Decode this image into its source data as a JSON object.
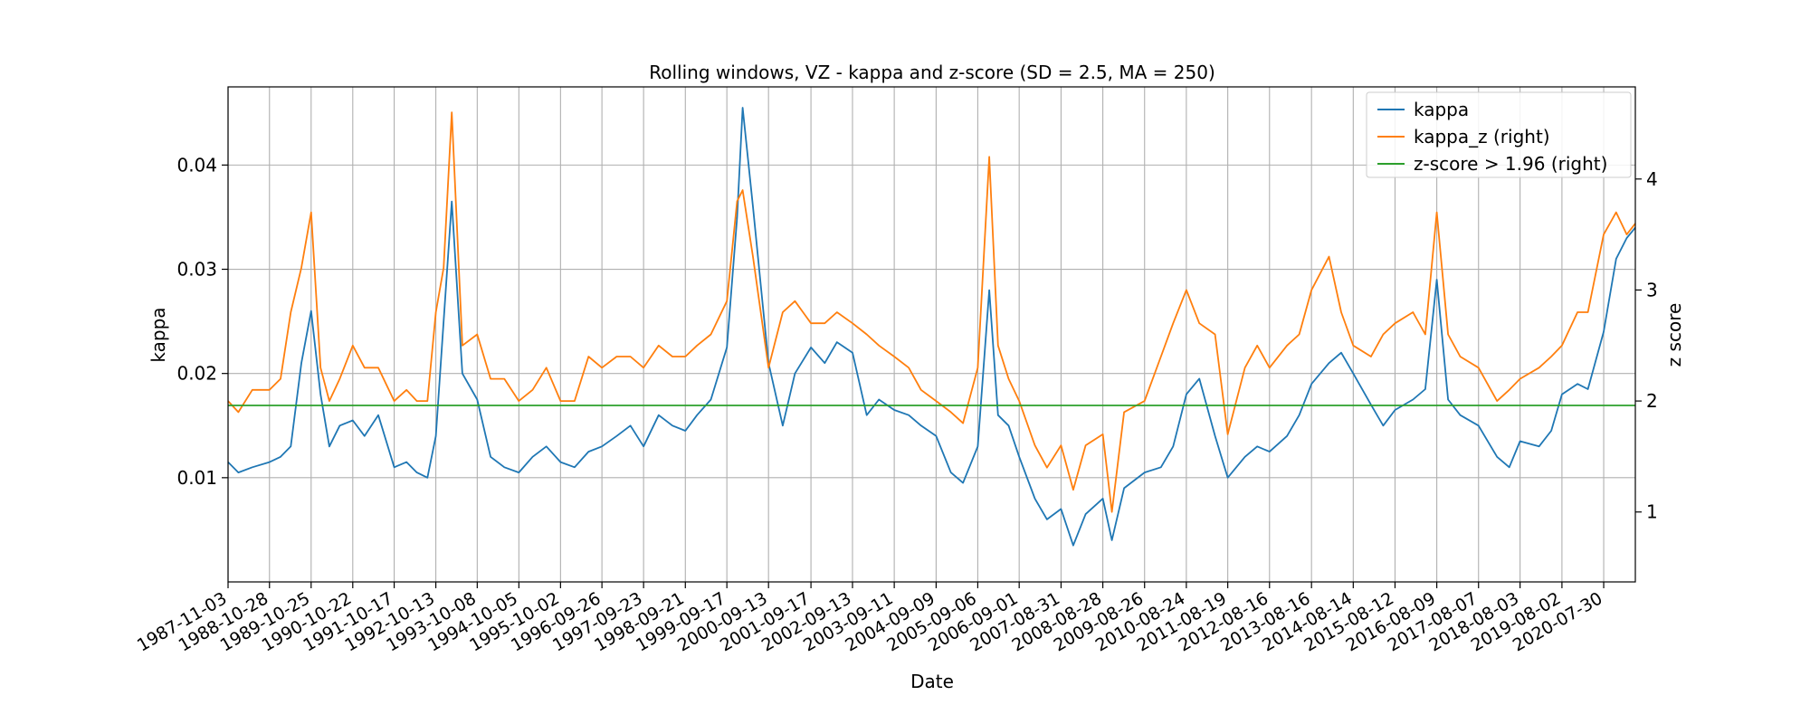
{
  "chart_data": {
    "type": "line",
    "title": "Rolling windows, VZ - kappa and z-score (SD = 2.5, MA = 250)",
    "xlabel": "Date",
    "ylabel": "kappa",
    "ylabel_right": "z score",
    "xlim": [
      "1987-11-03",
      "2021-05-01"
    ],
    "ylim": [
      0.0,
      0.0475
    ],
    "ylim_right": [
      0.37,
      4.83
    ],
    "x_tick_labels": [
      "1987-11-03",
      "1988-10-28",
      "1989-10-25",
      "1990-10-22",
      "1991-10-17",
      "1992-10-13",
      "1993-10-08",
      "1994-10-05",
      "1995-10-02",
      "1996-09-26",
      "1997-09-23",
      "1998-09-21",
      "1999-09-17",
      "2000-09-13",
      "2001-09-17",
      "2002-09-13",
      "2003-09-11",
      "2004-09-09",
      "2005-09-06",
      "2006-09-01",
      "2007-08-31",
      "2008-08-28",
      "2009-08-26",
      "2010-08-24",
      "2011-08-19",
      "2012-08-16",
      "2013-08-16",
      "2014-08-14",
      "2015-08-12",
      "2016-08-09",
      "2017-08-07",
      "2018-08-03",
      "2019-08-02",
      "2020-07-30"
    ],
    "y_tick_labels": [
      "0.01",
      "0.02",
      "0.03",
      "0.04"
    ],
    "y_tick_values": [
      0.01,
      0.02,
      0.03,
      0.04
    ],
    "y_tick_labels_right": [
      "1",
      "2",
      "3",
      "4"
    ],
    "y_tick_values_right": [
      1,
      2,
      3,
      4
    ],
    "grid": true,
    "legend_position": "top-right",
    "series": [
      {
        "name": "kappa",
        "axis": "left",
        "color": "#1f77b4",
        "x": [
          "1987-11-03",
          "1988-02-01",
          "1988-06-01",
          "1988-10-28",
          "1989-02-01",
          "1989-05-01",
          "1989-08-01",
          "1989-10-25",
          "1990-01-15",
          "1990-04-01",
          "1990-07-01",
          "1990-10-22",
          "1991-02-01",
          "1991-06-01",
          "1991-10-17",
          "1992-02-01",
          "1992-05-01",
          "1992-08-01",
          "1992-10-13",
          "1992-12-20",
          "1993-03-01",
          "1993-06-01",
          "1993-10-08",
          "1994-02-01",
          "1994-06-01",
          "1994-10-05",
          "1995-02-01",
          "1995-06-01",
          "1995-10-02",
          "1996-02-01",
          "1996-06-01",
          "1996-09-26",
          "1997-02-01",
          "1997-06-01",
          "1997-09-23",
          "1998-02-01",
          "1998-06-01",
          "1998-09-21",
          "1999-01-01",
          "1999-05-01",
          "1999-09-17",
          "1999-12-15",
          "2000-02-01",
          "2000-05-01",
          "2000-09-13",
          "2001-01-15",
          "2001-05-01",
          "2001-09-17",
          "2002-01-15",
          "2002-05-01",
          "2002-09-13",
          "2003-01-15",
          "2003-05-01",
          "2003-09-11",
          "2004-01-15",
          "2004-05-01",
          "2004-09-09",
          "2005-01-15",
          "2005-05-01",
          "2005-09-06",
          "2005-12-15",
          "2006-03-01",
          "2006-06-01",
          "2006-09-01",
          "2007-01-15",
          "2007-05-01",
          "2007-08-31",
          "2007-12-15",
          "2008-04-01",
          "2008-08-28",
          "2008-11-15",
          "2009-03-01",
          "2009-08-26",
          "2010-01-15",
          "2010-05-01",
          "2010-08-24",
          "2010-12-15",
          "2011-05-01",
          "2011-08-19",
          "2012-01-15",
          "2012-05-01",
          "2012-08-16",
          "2013-01-15",
          "2013-05-01",
          "2013-08-16",
          "2014-01-15",
          "2014-05-01",
          "2014-08-14",
          "2015-01-15",
          "2015-05-01",
          "2015-08-12",
          "2016-01-15",
          "2016-05-01",
          "2016-08-09",
          "2016-11-15",
          "2017-03-01",
          "2017-08-07",
          "2018-01-15",
          "2018-05-01",
          "2018-08-03",
          "2019-01-15",
          "2019-05-01",
          "2019-08-02",
          "2019-12-15",
          "2020-03-15",
          "2020-07-30",
          "2020-11-15",
          "2021-02-15",
          "2021-05-01"
        ],
        "values": [
          0.0115,
          0.0105,
          0.011,
          0.0115,
          0.012,
          0.013,
          0.021,
          0.026,
          0.018,
          0.013,
          0.015,
          0.0155,
          0.014,
          0.016,
          0.011,
          0.0115,
          0.0105,
          0.01,
          0.014,
          0.025,
          0.0365,
          0.02,
          0.0175,
          0.012,
          0.011,
          0.0105,
          0.012,
          0.013,
          0.0115,
          0.011,
          0.0125,
          0.013,
          0.014,
          0.015,
          0.013,
          0.016,
          0.015,
          0.0145,
          0.016,
          0.0175,
          0.0225,
          0.035,
          0.0455,
          0.036,
          0.021,
          0.015,
          0.02,
          0.0225,
          0.021,
          0.023,
          0.022,
          0.016,
          0.0175,
          0.0165,
          0.016,
          0.015,
          0.014,
          0.0105,
          0.0095,
          0.013,
          0.028,
          0.016,
          0.015,
          0.012,
          0.008,
          0.006,
          0.007,
          0.0035,
          0.0065,
          0.008,
          0.004,
          0.009,
          0.0105,
          0.011,
          0.013,
          0.018,
          0.0195,
          0.014,
          0.01,
          0.012,
          0.013,
          0.0125,
          0.014,
          0.016,
          0.019,
          0.021,
          0.022,
          0.02,
          0.017,
          0.015,
          0.0165,
          0.0175,
          0.0185,
          0.029,
          0.0175,
          0.016,
          0.015,
          0.012,
          0.011,
          0.0135,
          0.013,
          0.0145,
          0.018,
          0.019,
          0.0185,
          0.024,
          0.031,
          0.033,
          0.034
        ]
      },
      {
        "name": "kappa_z (right)",
        "axis": "right",
        "color": "#ff7f0e",
        "x": [
          "1987-11-03",
          "1988-02-01",
          "1988-06-01",
          "1988-10-28",
          "1989-02-01",
          "1989-05-01",
          "1989-08-01",
          "1989-10-25",
          "1990-01-15",
          "1990-04-01",
          "1990-07-01",
          "1990-10-22",
          "1991-02-01",
          "1991-06-01",
          "1991-10-17",
          "1992-02-01",
          "1992-05-01",
          "1992-08-01",
          "1992-10-13",
          "1992-12-20",
          "1993-03-01",
          "1993-06-01",
          "1993-10-08",
          "1994-02-01",
          "1994-06-01",
          "1994-10-05",
          "1995-02-01",
          "1995-06-01",
          "1995-10-02",
          "1996-02-01",
          "1996-06-01",
          "1996-09-26",
          "1997-02-01",
          "1997-06-01",
          "1997-09-23",
          "1998-02-01",
          "1998-06-01",
          "1998-09-21",
          "1999-01-01",
          "1999-05-01",
          "1999-09-17",
          "1999-12-15",
          "2000-02-01",
          "2000-05-01",
          "2000-09-13",
          "2001-01-15",
          "2001-05-01",
          "2001-09-17",
          "2002-01-15",
          "2002-05-01",
          "2002-09-13",
          "2003-01-15",
          "2003-05-01",
          "2003-09-11",
          "2004-01-15",
          "2004-05-01",
          "2004-09-09",
          "2005-01-15",
          "2005-05-01",
          "2005-09-06",
          "2005-12-15",
          "2006-03-01",
          "2006-06-01",
          "2006-09-01",
          "2007-01-15",
          "2007-05-01",
          "2007-08-31",
          "2007-12-15",
          "2008-04-01",
          "2008-08-28",
          "2008-11-15",
          "2009-03-01",
          "2009-08-26",
          "2010-01-15",
          "2010-05-01",
          "2010-08-24",
          "2010-12-15",
          "2011-05-01",
          "2011-08-19",
          "2012-01-15",
          "2012-05-01",
          "2012-08-16",
          "2013-01-15",
          "2013-05-01",
          "2013-08-16",
          "2014-01-15",
          "2014-05-01",
          "2014-08-14",
          "2015-01-15",
          "2015-05-01",
          "2015-08-12",
          "2016-01-15",
          "2016-05-01",
          "2016-08-09",
          "2016-11-15",
          "2017-03-01",
          "2017-08-07",
          "2018-01-15",
          "2018-05-01",
          "2018-08-03",
          "2019-01-15",
          "2019-05-01",
          "2019-08-02",
          "2019-12-15",
          "2020-03-15",
          "2020-07-30",
          "2020-11-15",
          "2021-02-15",
          "2021-05-01"
        ],
        "values": [
          2.0,
          1.9,
          2.1,
          2.1,
          2.2,
          2.8,
          3.2,
          3.7,
          2.3,
          2.0,
          2.2,
          2.5,
          2.3,
          2.3,
          2.0,
          2.1,
          2.0,
          2.0,
          2.8,
          3.2,
          4.6,
          2.5,
          2.6,
          2.2,
          2.2,
          2.0,
          2.1,
          2.3,
          2.0,
          2.0,
          2.4,
          2.3,
          2.4,
          2.4,
          2.3,
          2.5,
          2.4,
          2.4,
          2.5,
          2.6,
          2.9,
          3.8,
          3.9,
          3.3,
          2.3,
          2.8,
          2.9,
          2.7,
          2.7,
          2.8,
          2.7,
          2.6,
          2.5,
          2.4,
          2.3,
          2.1,
          2.0,
          1.9,
          1.8,
          2.3,
          4.2,
          2.5,
          2.2,
          2.0,
          1.6,
          1.4,
          1.6,
          1.2,
          1.6,
          1.7,
          1.0,
          1.9,
          2.0,
          2.4,
          2.7,
          3.0,
          2.7,
          2.6,
          1.7,
          2.3,
          2.5,
          2.3,
          2.5,
          2.6,
          3.0,
          3.3,
          2.8,
          2.5,
          2.4,
          2.6,
          2.7,
          2.8,
          2.6,
          3.7,
          2.6,
          2.4,
          2.3,
          2.0,
          2.1,
          2.2,
          2.3,
          2.4,
          2.5,
          2.8,
          2.8,
          3.5,
          3.7,
          3.5,
          3.6
        ]
      },
      {
        "name": "z-score > 1.96 (right)",
        "axis": "right",
        "color": "#2ca02c",
        "x": [
          "1987-11-03",
          "2021-05-01"
        ],
        "values": [
          1.96,
          1.96
        ]
      }
    ]
  }
}
